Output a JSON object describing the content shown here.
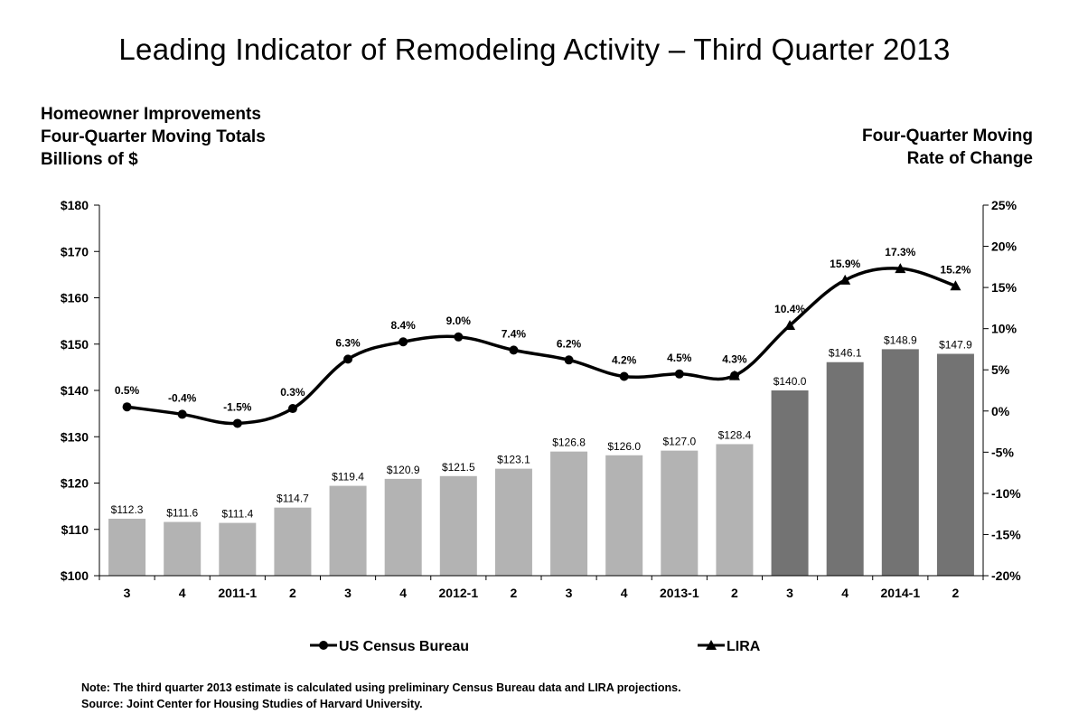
{
  "title": "Leading Indicator of Remodeling Activity – Third Quarter 2013",
  "left_axis_title": [
    "Homeowner Improvements",
    "Four-Quarter Moving Totals",
    "Billions of $"
  ],
  "right_axis_title": [
    "Four-Quarter Moving",
    "Rate of Change"
  ],
  "notes": [
    "Note: The third quarter 2013 estimate is calculated using preliminary Census Bureau data and LIRA projections.",
    "Source: Joint Center for Housing Studies of Harvard University."
  ],
  "colors": {
    "census_bar": "#b3b3b3",
    "lira_bar": "#737373",
    "line": "#000000"
  },
  "chart_data": {
    "type": "bar",
    "categories": [
      "3",
      "4",
      "2011-1",
      "2",
      "3",
      "4",
      "2012-1",
      "2",
      "3",
      "4",
      "2013-1",
      "2",
      "3",
      "4",
      "2014-1",
      "2"
    ],
    "y_left": {
      "min": 100,
      "max": 180,
      "ticks": [
        "$100",
        "$110",
        "$120",
        "$130",
        "$140",
        "$150",
        "$160",
        "$170",
        "$180"
      ]
    },
    "y_right": {
      "min": -20,
      "max": 25,
      "ticks": [
        "-20%",
        "-15%",
        "-10%",
        "-5%",
        "0%",
        "5%",
        "10%",
        "15%",
        "20%",
        "25%"
      ]
    },
    "bars": {
      "values": [
        112.3,
        111.6,
        111.4,
        114.7,
        119.4,
        120.9,
        121.5,
        123.1,
        126.8,
        126.0,
        127.0,
        128.4,
        140.0,
        146.1,
        148.9,
        147.9
      ],
      "labels": [
        "$112.3",
        "$111.6",
        "$111.4",
        "$114.7",
        "$119.4",
        "$120.9",
        "$121.5",
        "$123.1",
        "$126.8",
        "$126.0",
        "$127.0",
        "$128.4",
        "$140.0",
        "$146.1",
        "$148.9",
        "$147.9"
      ],
      "source": [
        "census",
        "census",
        "census",
        "census",
        "census",
        "census",
        "census",
        "census",
        "census",
        "census",
        "census",
        "census",
        "lira",
        "lira",
        "lira",
        "lira"
      ]
    },
    "series": [
      {
        "name": "US Census Bureau",
        "marker": "circle",
        "values": [
          0.5,
          -0.4,
          -1.5,
          0.3,
          6.3,
          8.4,
          9.0,
          7.4,
          6.2,
          4.2,
          4.5,
          4.3,
          null,
          null,
          null,
          null
        ],
        "labels": [
          "0.5%",
          "-0.4%",
          "-1.5%",
          "0.3%",
          "6.3%",
          "8.4%",
          "9.0%",
          "7.4%",
          "6.2%",
          "4.2%",
          "4.5%",
          "4.3%",
          "",
          "",
          "",
          ""
        ]
      },
      {
        "name": "LIRA",
        "marker": "triangle",
        "values": [
          null,
          null,
          null,
          null,
          null,
          null,
          null,
          null,
          null,
          null,
          null,
          4.3,
          10.4,
          15.9,
          17.3,
          15.2
        ],
        "labels": [
          "",
          "",
          "",
          "",
          "",
          "",
          "",
          "",
          "",
          "",
          "",
          "",
          "10.4%",
          "15.9%",
          "17.3%",
          "15.2%"
        ]
      }
    ],
    "legend_position": "bottom"
  }
}
